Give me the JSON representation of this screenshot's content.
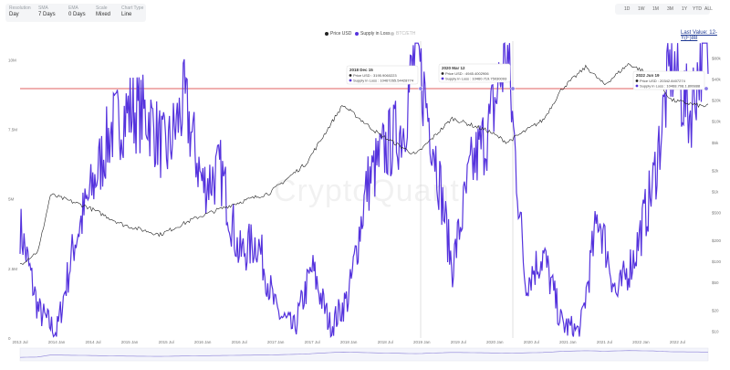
{
  "controls": [
    {
      "label": "Resolution",
      "value": "Day"
    },
    {
      "label": "SMA",
      "value": "7 Days"
    },
    {
      "label": "EMA",
      "value": "0 Days"
    },
    {
      "label": "Scale",
      "value": "Mixed"
    },
    {
      "label": "Chart Type",
      "value": "Line"
    }
  ],
  "timeframes": [
    "1D",
    "1W",
    "1M",
    "3M",
    "1Y",
    "YTD",
    "ALL"
  ],
  "legend": {
    "price": "Price USD",
    "supply": "Supply in Loss",
    "third": "BTC/ETH"
  },
  "last_value": "Last Value: 12-Y(F)88",
  "watermark": "CryptoQuant",
  "tooltips": [
    {
      "title": "2018 Dec 15",
      "line1": "Price USD : 3195.9060223",
      "line2": "Supply in Loss : 10467265.54428774"
    },
    {
      "title": "2020 Mar 12",
      "line1": "Price USD : 4945.4002906",
      "line2": "Supply in Loss : 10460.719.75030093"
    },
    {
      "title": "2022 Jun 19",
      "line1": "Price USD : 20342.8407274",
      "line2": "Supply in Loss : 10468.708.1.800888"
    }
  ],
  "colors": {
    "price": "#222222",
    "supply": "#5533dd",
    "threshold": "#e06060"
  },
  "chart_data": {
    "type": "line",
    "x_ticks": [
      "2013 Jul",
      "2014 Jan",
      "2014 Jul",
      "2015 Jan",
      "2015 Jul",
      "2016 Jan",
      "2016 Jul",
      "2017 Jan",
      "2017 Jul",
      "2018 Jan",
      "2018 Jul",
      "2019 Jan",
      "2019 Jul",
      "2020 Jan",
      "2020 Jul",
      "2021 Jan",
      "2021 Jul",
      "2022 Jan",
      "2022 Jul"
    ],
    "left_ticks": [
      "10M",
      "7.5M",
      "5M",
      "2.5M",
      "0"
    ],
    "right_ticks": [
      "$80k",
      "$40k",
      "$20k",
      "$10k",
      "$5k",
      "$2k",
      "$1k",
      "$500",
      "$200",
      "$100",
      "$50",
      "$20",
      "$10"
    ],
    "y_left_range": [
      0,
      11000000
    ],
    "y_right_scale": "log",
    "series": [
      {
        "name": "Supply in Loss",
        "axis": "left",
        "points": [
          [
            "2013 Jul",
            4000000
          ],
          [
            "2013 Oct",
            1000000
          ],
          [
            "2014 Jan",
            200000
          ],
          [
            "2014 Apr",
            3500000
          ],
          [
            "2014 Jul",
            5500000
          ],
          [
            "2014 Oct",
            7500000
          ],
          [
            "2015 Jan",
            8200000
          ],
          [
            "2015 Apr",
            8000000
          ],
          [
            "2015 Jul",
            6600000
          ],
          [
            "2015 Oct",
            8500000
          ],
          [
            "2016 Jan",
            5500000
          ],
          [
            "2016 Apr",
            6000000
          ],
          [
            "2016 Jul",
            3000000
          ],
          [
            "2016 Oct",
            3500000
          ],
          [
            "2017 Jan",
            1000000
          ],
          [
            "2017 Apr",
            300000
          ],
          [
            "2017 Jul",
            2500000
          ],
          [
            "2017 Oct",
            400000
          ],
          [
            "2018 Jan",
            1500000
          ],
          [
            "2018 Apr",
            5500000
          ],
          [
            "2018 Jul",
            6800000
          ],
          [
            "2018 Oct",
            7600000
          ],
          [
            "2018 Dec",
            10400000
          ],
          [
            "2019 Mar",
            7000000
          ],
          [
            "2019 Jun",
            2500000
          ],
          [
            "2019 Sep",
            6000000
          ],
          [
            "2019 Dec",
            7500000
          ],
          [
            "2020 Mar",
            10400000
          ],
          [
            "2020 Jun",
            2000000
          ],
          [
            "2020 Sep",
            3000000
          ],
          [
            "2020 Dec",
            500000
          ],
          [
            "2021 Mar",
            200000
          ],
          [
            "2021 Jun",
            4500000
          ],
          [
            "2021 Sep",
            1500000
          ],
          [
            "2021 Dec",
            3000000
          ],
          [
            "2022 Mar",
            5500000
          ],
          [
            "2022 Jun",
            10000000
          ],
          [
            "2022 Sep",
            8000000
          ],
          [
            "2022 Nov",
            10300000
          ]
        ]
      },
      {
        "name": "Price USD",
        "axis": "right",
        "points": [
          [
            "2013 Jul",
            90
          ],
          [
            "2013 Oct",
            140
          ],
          [
            "2013 Dec",
            900
          ],
          [
            "2014 Jun",
            600
          ],
          [
            "2014 Dec",
            330
          ],
          [
            "2015 Jun",
            240
          ],
          [
            "2015 Dec",
            420
          ],
          [
            "2016 Jun",
            650
          ],
          [
            "2016 Dec",
            950
          ],
          [
            "2017 Jun",
            2500
          ],
          [
            "2017 Dec",
            17000
          ],
          [
            "2018 Jun",
            6500
          ],
          [
            "2018 Dec",
            3300
          ],
          [
            "2019 Jun",
            11000
          ],
          [
            "2019 Dec",
            7200
          ],
          [
            "2020 Mar",
            5000
          ],
          [
            "2020 Sep",
            10500
          ],
          [
            "2020 Dec",
            29000
          ],
          [
            "2021 Apr",
            60000
          ],
          [
            "2021 Jul",
            33000
          ],
          [
            "2021 Nov",
            66000
          ],
          [
            "2022 Mar",
            44000
          ],
          [
            "2022 Jun",
            20000
          ],
          [
            "2022 Nov",
            16500
          ]
        ]
      }
    ],
    "grid": false
  }
}
